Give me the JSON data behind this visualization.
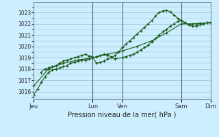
{
  "background_color": "#cceeff",
  "grid_color": "#99bbcc",
  "line_color": "#1a5c1a",
  "xlabel": "Pression niveau de la mer( hPa )",
  "xlabel_fontsize": 7,
  "ylim": [
    1015.3,
    1023.9
  ],
  "yticks": [
    1016,
    1017,
    1018,
    1019,
    1020,
    1021,
    1022,
    1023
  ],
  "ytick_fontsize": 5.5,
  "xtick_fontsize": 6,
  "day_positions": [
    0.0,
    0.333,
    0.5,
    0.833,
    1.0
  ],
  "day_labels": [
    "Jeu",
    "Lun",
    "Ven",
    "Sam",
    "Dim"
  ],
  "vline_positions": [
    0.0,
    0.333,
    0.5,
    0.833,
    1.0
  ],
  "series1_x": [
    0.0,
    0.021,
    0.042,
    0.063,
    0.083,
    0.104,
    0.125,
    0.146,
    0.167,
    0.188,
    0.208,
    0.229,
    0.25,
    0.271,
    0.292,
    0.313,
    0.333,
    0.354,
    0.375,
    0.396,
    0.417,
    0.438,
    0.458,
    0.5,
    0.521,
    0.542,
    0.563,
    0.583,
    0.604,
    0.625,
    0.646,
    0.667,
    0.688,
    0.708,
    0.729,
    0.75,
    0.771,
    0.792,
    0.813,
    0.833,
    0.854,
    0.875,
    0.896,
    0.917,
    0.938,
    0.958,
    0.979,
    1.0
  ],
  "series1_y": [
    1015.7,
    1016.2,
    1016.8,
    1017.3,
    1017.7,
    1017.9,
    1018.0,
    1018.1,
    1018.2,
    1018.3,
    1018.5,
    1018.6,
    1018.7,
    1018.8,
    1018.8,
    1018.9,
    1019.0,
    1019.1,
    1019.2,
    1019.3,
    1019.2,
    1019.1,
    1018.9,
    1019.0,
    1019.1,
    1019.2,
    1019.3,
    1019.5,
    1019.7,
    1019.9,
    1020.1,
    1020.4,
    1020.7,
    1021.0,
    1021.3,
    1021.5,
    1021.8,
    1022.0,
    1022.2,
    1022.3,
    1022.1,
    1021.9,
    1021.8,
    1021.8,
    1021.9,
    1022.0,
    1022.1,
    1022.1
  ],
  "series2_x": [
    0.04,
    0.063,
    0.083,
    0.104,
    0.125,
    0.146,
    0.167,
    0.188,
    0.208,
    0.229,
    0.25,
    0.271,
    0.292,
    0.313,
    0.333,
    0.354,
    0.375,
    0.396,
    0.417,
    0.438,
    0.458,
    0.479,
    0.5,
    0.521,
    0.542,
    0.563,
    0.583,
    0.604,
    0.625,
    0.646,
    0.667,
    0.688,
    0.708,
    0.729,
    0.75,
    0.771,
    0.792,
    0.813,
    0.833,
    0.854,
    0.875,
    0.896,
    0.938,
    0.979,
    1.0
  ],
  "series2_y": [
    1017.7,
    1018.0,
    1018.1,
    1018.2,
    1018.3,
    1018.5,
    1018.7,
    1018.8,
    1018.9,
    1019.0,
    1019.1,
    1019.2,
    1019.3,
    1019.15,
    1019.1,
    1018.5,
    1018.6,
    1018.7,
    1018.9,
    1019.0,
    1019.2,
    1019.5,
    1019.9,
    1020.2,
    1020.5,
    1020.8,
    1021.1,
    1021.4,
    1021.7,
    1022.0,
    1022.3,
    1022.7,
    1023.0,
    1023.15,
    1023.2,
    1023.05,
    1022.8,
    1022.5,
    1022.3,
    1022.1,
    1021.9,
    1022.0,
    1022.05,
    1022.1,
    1022.1
  ],
  "series3_x": [
    0.0,
    0.083,
    0.167,
    0.25,
    0.333,
    0.417,
    0.5,
    0.583,
    0.667,
    0.75,
    0.833,
    0.917,
    1.0
  ],
  "series3_y": [
    1016.5,
    1018.0,
    1018.5,
    1018.8,
    1019.0,
    1019.3,
    1019.6,
    1020.0,
    1020.5,
    1021.2,
    1022.0,
    1022.0,
    1022.1
  ]
}
